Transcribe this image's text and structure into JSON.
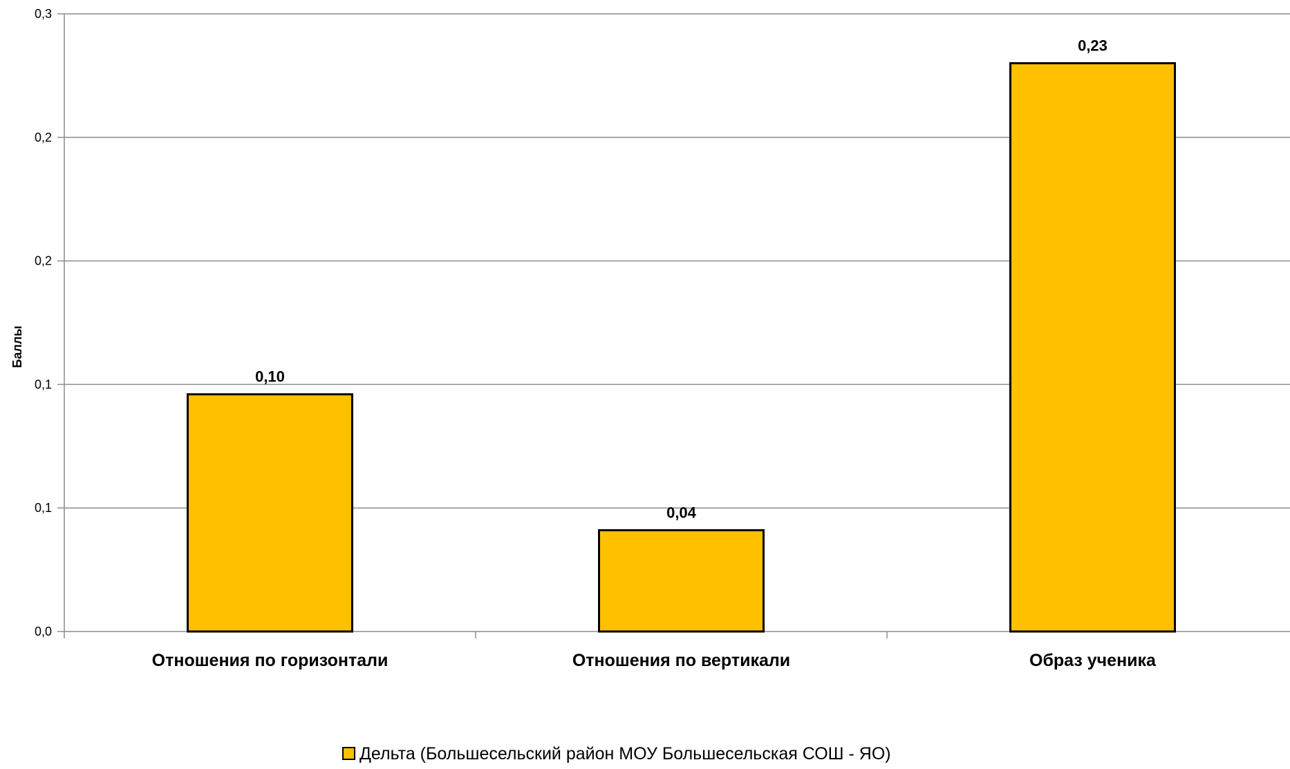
{
  "chart_data": {
    "type": "bar",
    "categories": [
      "Отношения по горизонтали",
      "Отношения по вертикали",
      "Образ ученика"
    ],
    "series": [
      {
        "name": "Дельта (Большесельский район МОУ Большесельская СОШ - ЯО)",
        "values": [
          0.096,
          0.041,
          0.23
        ],
        "data_labels": [
          "0,10",
          "0,04",
          "0,23"
        ],
        "color": "#FFC000"
      }
    ],
    "ylabel": "Баллы",
    "xlabel": "",
    "ylim": [
      0,
      0.25
    ],
    "yticks": [
      0,
      0.05,
      0.1,
      0.15,
      0.2,
      0.25
    ],
    "ytick_labels": [
      "0,0",
      "0,1",
      "0,1",
      "0,2",
      "0,2",
      "0,3"
    ],
    "grid": true,
    "legend": {
      "position": "bottom",
      "entries": [
        "Дельта (Большесельский район МОУ Большесельская СОШ - ЯО)"
      ]
    }
  }
}
